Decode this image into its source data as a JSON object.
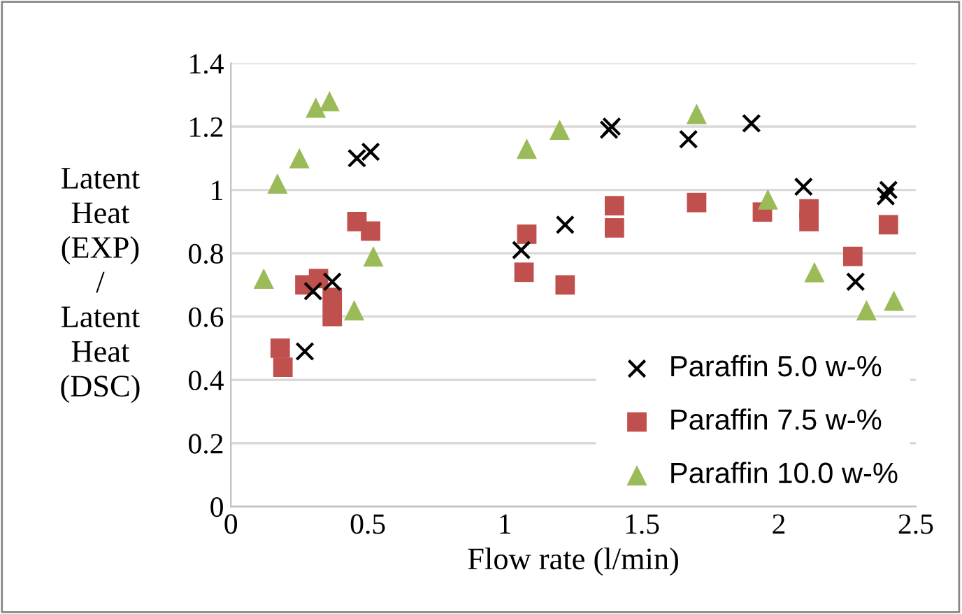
{
  "chart_data": {
    "type": "scatter",
    "xlabel": "Flow rate (l/min)",
    "ylabel": "Latent\nHeat\n(EXP)\n/\nLatent\nHeat\n(DSC)",
    "xlim": [
      0,
      2.5
    ],
    "xticks": [
      0,
      0.5,
      1,
      1.5,
      2,
      2.5
    ],
    "ylim": [
      0,
      1.4
    ],
    "yticks": [
      0,
      0.2,
      0.4,
      0.6,
      0.8,
      1,
      1.2,
      1.4
    ],
    "grid": "y",
    "legend": "bottom right",
    "series": [
      {
        "name": "Paraffin 5.0 w-%",
        "color": "#000000",
        "marker": "cross",
        "x": [
          0.27,
          0.3,
          0.37,
          0.46,
          0.51,
          1.06,
          1.22,
          1.38,
          1.39,
          1.67,
          1.9,
          2.09,
          2.28,
          2.39,
          2.4
        ],
        "values": [
          0.49,
          0.68,
          0.71,
          1.1,
          1.12,
          0.81,
          0.89,
          1.19,
          1.2,
          1.16,
          1.21,
          1.01,
          0.71,
          0.98,
          1.0
        ]
      },
      {
        "name": "Paraffin 7.5 w-%",
        "color": "#c0504d",
        "marker": "square",
        "x": [
          0.18,
          0.19,
          0.27,
          0.32,
          0.37,
          0.37,
          0.46,
          0.51,
          1.08,
          1.07,
          1.22,
          1.4,
          1.4,
          1.7,
          1.94,
          2.11,
          2.11,
          2.27,
          2.4
        ],
        "values": [
          0.5,
          0.44,
          0.7,
          0.72,
          0.66,
          0.6,
          0.9,
          0.87,
          0.86,
          0.74,
          0.7,
          0.95,
          0.88,
          0.96,
          0.93,
          0.94,
          0.9,
          0.79,
          0.89
        ]
      },
      {
        "name": "Paraffin 10.0 w-%",
        "color": "#9bbb59",
        "marker": "triangle",
        "x": [
          0.12,
          0.17,
          0.25,
          0.31,
          0.36,
          0.45,
          0.52,
          1.08,
          1.2,
          1.7,
          1.96,
          2.13,
          2.32,
          2.42
        ],
        "values": [
          0.72,
          1.02,
          1.1,
          1.26,
          1.28,
          0.62,
          0.79,
          1.13,
          1.19,
          1.24,
          0.97,
          0.74,
          0.62,
          0.65
        ]
      }
    ]
  }
}
